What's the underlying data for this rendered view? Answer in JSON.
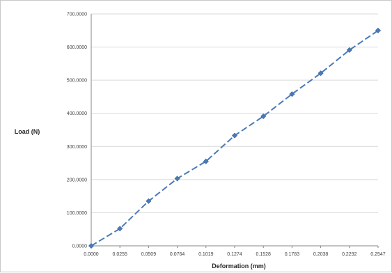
{
  "chart_data": {
    "type": "line",
    "title": "",
    "xlabel": "Deformation (mm)",
    "ylabel": "Load (N)",
    "x": [
      "0.0000",
      "0.0255",
      "0.0509",
      "0.0764",
      "0.1019",
      "0.1274",
      "0.1528",
      "0.1783",
      "0.2038",
      "0.2292",
      "0.2547"
    ],
    "y_ticks": [
      "0.0000",
      "100.0000",
      "200.0000",
      "300.0000",
      "400.0000",
      "500.0000",
      "600.0000",
      "700.0000"
    ],
    "ylim": [
      0,
      700
    ],
    "grid": true,
    "legend": "none",
    "series": [
      {
        "values": [
          0,
          52,
          135,
          203,
          255,
          333,
          391,
          458,
          521,
          591,
          650
        ],
        "color": "#4a7ab8",
        "line_style": "dashed",
        "marker": "diamond"
      }
    ]
  }
}
